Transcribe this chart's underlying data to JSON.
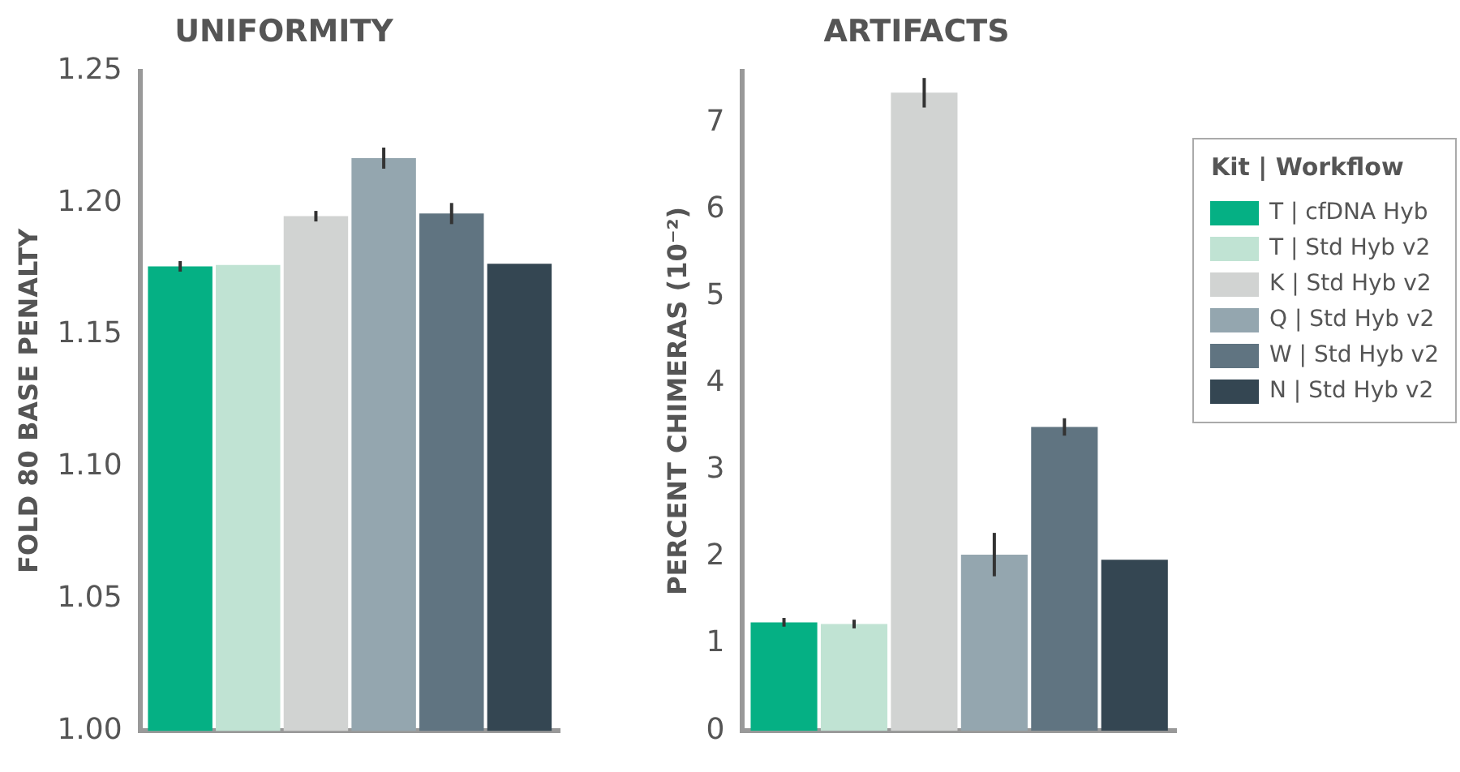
{
  "chart_data": [
    {
      "type": "bar",
      "title": "UNIFORMITY",
      "ylabel": "FOLD 80 BASE PENALTY",
      "categories": [
        null
      ],
      "series": [
        {
          "color": "#05b084",
          "values": [
            1.176
          ],
          "errors": [
            0.002
          ]
        },
        {
          "color": "#c0e3d3",
          "values": [
            1.1765
          ],
          "errors": [
            null
          ]
        },
        {
          "color": "#d1d3d2",
          "values": [
            1.195
          ],
          "errors": [
            0.002
          ]
        },
        {
          "color": "#94a6af",
          "values": [
            1.217
          ],
          "errors": [
            0.004
          ]
        },
        {
          "color": "#607481",
          "values": [
            1.196
          ],
          "errors": [
            0.004
          ]
        },
        {
          "color": "#344652",
          "values": [
            1.177
          ],
          "errors": [
            null
          ]
        }
      ],
      "ylim": [
        1.0,
        1.25
      ],
      "yticks": [
        {
          "value": 1.0,
          "label": "1.00"
        },
        1.05,
        {
          "value": 1.1,
          "label": "1.10"
        },
        1.15,
        {
          "value": 1.2,
          "label": "1.20"
        },
        1.25
      ],
      "grid": false,
      "legend": false
    },
    {
      "type": "bar",
      "title": "ARTIFACTS",
      "ylabel": "PERCENT CHIMERAS (10⁻²)",
      "legend_title": "Kit | Workflow",
      "categories": [
        null
      ],
      "series": [
        {
          "name": "T | cfDNA Hyb",
          "color": "#05b084",
          "values": [
            1.25
          ],
          "errors": [
            0.05
          ]
        },
        {
          "name": "T | Std Hyb v2",
          "color": "#c0e3d3",
          "values": [
            1.23
          ],
          "errors": [
            0.05
          ]
        },
        {
          "name": "K | Std Hyb v2",
          "color": "#d1d3d2",
          "values": [
            7.35
          ],
          "errors": [
            0.17
          ]
        },
        {
          "name": "Q | Std Hyb v2",
          "color": "#94a6af",
          "values": [
            2.03
          ],
          "errors": [
            0.25
          ]
        },
        {
          "name": "W | Std Hyb v2",
          "color": "#607481",
          "values": [
            3.5
          ],
          "errors": [
            0.1
          ]
        },
        {
          "name": "N | Std Hyb v2",
          "color": "#344652",
          "values": [
            1.97
          ],
          "errors": [
            null
          ]
        }
      ],
      "ylim": [
        0,
        7.6
      ],
      "yticks": [
        0,
        1,
        2,
        3,
        4,
        5,
        6,
        7
      ],
      "grid": false,
      "legend": "top right"
    }
  ]
}
